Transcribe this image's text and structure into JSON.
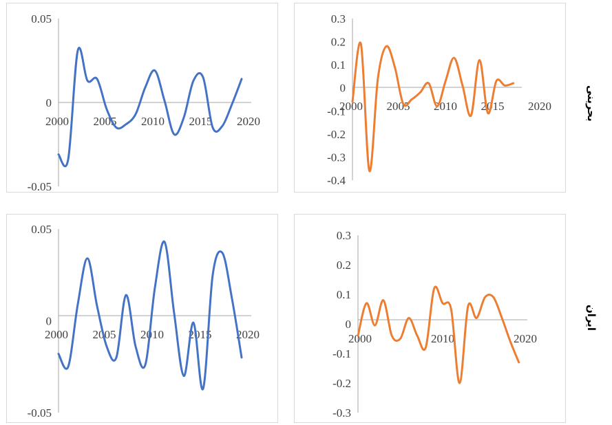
{
  "row_labels": {
    "top": "بحرینی",
    "bottom": "ایران"
  },
  "colors": {
    "blue": "#4472c4",
    "orange": "#ed7d31",
    "axis": "#a6a6a6",
    "text": "#404040",
    "border": "#d9d9d9"
  },
  "chart_data": [
    {
      "type": "line",
      "panel": "top-left",
      "color": "blue",
      "xlim": [
        2000,
        2020
      ],
      "ylim": [
        -0.05,
        0.05
      ],
      "xticks": [
        "2000",
        "2005",
        "2010",
        "2015",
        "2020"
      ],
      "yticks": [
        "0.05",
        "0",
        "-0.05"
      ],
      "x": [
        2000,
        2001,
        2002,
        2003,
        2004,
        2005,
        2006,
        2007,
        2008,
        2009,
        2010,
        2011,
        2012,
        2013,
        2014,
        2015,
        2016,
        2017,
        2018,
        2019
      ],
      "values": [
        -0.031,
        -0.034,
        0.031,
        0.013,
        0.014,
        -0.004,
        -0.015,
        -0.013,
        -0.007,
        0.009,
        0.019,
        0.001,
        -0.019,
        -0.009,
        0.013,
        0.015,
        -0.015,
        -0.014,
        -0.001,
        0.014
      ]
    },
    {
      "type": "line",
      "panel": "top-right",
      "color": "orange",
      "xlim": [
        2000,
        2020
      ],
      "ylim": [
        -0.4,
        0.3
      ],
      "xticks": [
        "2000",
        "2005",
        "2010",
        "2015",
        "2020"
      ],
      "yticks": [
        "0.3",
        "0.2",
        "0.1",
        "0",
        "-0.1",
        "-0.2",
        "-0.3",
        "-0.4"
      ],
      "x": [
        2000,
        2001,
        2002,
        2003,
        2004,
        2005,
        2006,
        2007,
        2008,
        2009,
        2010,
        2011,
        2012,
        2013,
        2014,
        2015,
        2016,
        2017,
        2018,
        2019
      ],
      "values": [
        -0.06,
        0.19,
        -0.36,
        0.04,
        0.18,
        0.09,
        -0.07,
        -0.05,
        -0.02,
        0.02,
        -0.08,
        0.03,
        0.13,
        0.01,
        -0.12,
        0.12,
        -0.11,
        0.03,
        0.01,
        0.02
      ]
    },
    {
      "type": "line",
      "panel": "bottom-left",
      "color": "blue",
      "xlim": [
        2000,
        2020
      ],
      "ylim": [
        -0.05,
        0.05
      ],
      "xticks": [
        "2000",
        "2005",
        "2010",
        "2015",
        "2020"
      ],
      "yticks": [
        "0.05",
        "0",
        "-0.05"
      ],
      "x": [
        2000,
        2001,
        2002,
        2003,
        2004,
        2005,
        2006,
        2007,
        2008,
        2009,
        2010,
        2011,
        2012,
        2013,
        2014,
        2015,
        2016,
        2017,
        2018,
        2019
      ],
      "values": [
        -0.018,
        -0.025,
        0.009,
        0.034,
        0.008,
        -0.014,
        -0.02,
        0.014,
        -0.014,
        -0.024,
        0.018,
        0.043,
        0.004,
        -0.03,
        -0.001,
        -0.037,
        0.025,
        0.037,
        0.012,
        -0.02
      ]
    },
    {
      "type": "line",
      "panel": "bottom-right",
      "color": "orange",
      "xlim": [
        2000,
        2020
      ],
      "ylim": [
        -0.3,
        0.3
      ],
      "xticks": [
        "2000",
        "2010",
        "2020"
      ],
      "yticks": [
        "0.3",
        "0.2",
        "0.1",
        "0",
        "-0.1",
        "-0.2",
        "-0.3"
      ],
      "x": [
        2000,
        2001,
        2002,
        2003,
        2004,
        2005,
        2006,
        2007,
        2008,
        2009,
        2010,
        2011,
        2012,
        2013,
        2014,
        2015,
        2016,
        2017,
        2018,
        2019
      ],
      "values": [
        -0.04,
        0.07,
        -0.005,
        0.08,
        -0.04,
        -0.05,
        0.02,
        -0.04,
        -0.08,
        0.12,
        0.07,
        0.05,
        -0.2,
        0.06,
        0.02,
        0.09,
        0.09,
        0.02,
        -0.06,
        -0.13
      ]
    }
  ]
}
